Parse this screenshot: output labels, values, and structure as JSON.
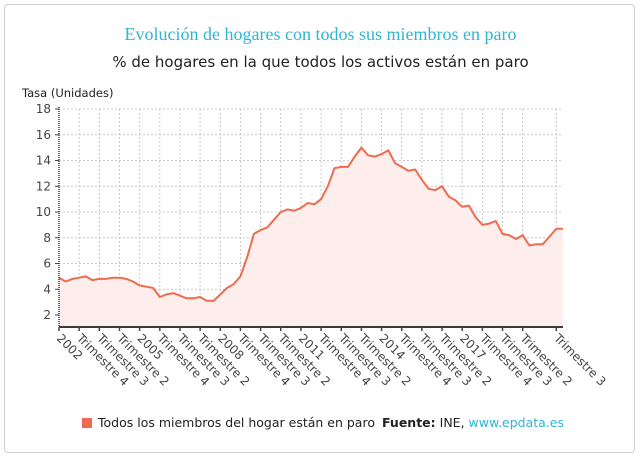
{
  "header": {
    "title": "Evolución de hogares con todos sus miembros en paro",
    "subtitle": "% de hogares en la que todos los activos están en paro"
  },
  "footer": {
    "source_label": "Fuente:",
    "source_text": "INE,",
    "source_link": "www.epdata.es"
  },
  "colors": {
    "title": "#2fb5d3",
    "series": "#ee6b4f",
    "area": "#fdeeec",
    "link": "#2fb5d3"
  },
  "chart_data": {
    "type": "area",
    "title": "Evolución de hogares con todos sus miembros en paro",
    "subtitle": "% de hogares en la que todos los activos están en paro",
    "xlabel": "",
    "ylabel": "Tasa (Unidades)",
    "ylim": [
      1.1,
      18
    ],
    "yticks": [
      2,
      4,
      6,
      8,
      10,
      12,
      14,
      16,
      18
    ],
    "grid": true,
    "legend_position": "bottom-left",
    "x_tick_labels": [
      "2002",
      "Trimestre 4",
      "Trimestre 3",
      "Trimestre 2",
      "2005",
      "Trimestre 4",
      "Trimestre 3",
      "Trimestre 2",
      "2008",
      "Trimestre 4",
      "Trimestre 3",
      "Trimestre 2",
      "2011",
      "Trimestre 4",
      "Trimestre 3",
      "Trimestre 2",
      "2014",
      "Trimestre 4",
      "Trimestre 3",
      "Trimestre 2",
      "2017",
      "Trimestre 4",
      "Trimestre 3",
      "Trimestre 2",
      "Trimestre 3"
    ],
    "x_tick_indices": [
      0,
      3,
      6,
      9,
      12,
      15,
      18,
      21,
      24,
      27,
      30,
      33,
      36,
      39,
      42,
      45,
      48,
      51,
      54,
      57,
      60,
      63,
      66,
      69,
      74
    ],
    "series": [
      {
        "name": "Todos los miembros del hogar están en paro",
        "color": "#ee6b4f",
        "values": [
          4.9,
          4.6,
          4.8,
          4.9,
          5.0,
          4.7,
          4.8,
          4.8,
          4.9,
          4.9,
          4.8,
          4.6,
          4.3,
          4.2,
          4.1,
          3.4,
          3.6,
          3.7,
          3.5,
          3.3,
          3.3,
          3.4,
          3.1,
          3.1,
          3.6,
          4.1,
          4.4,
          5.0,
          6.5,
          8.3,
          8.6,
          8.8,
          9.4,
          10.0,
          10.2,
          10.1,
          10.3,
          10.7,
          10.6,
          11.0,
          12.0,
          13.4,
          13.5,
          13.5,
          14.3,
          15.0,
          14.4,
          14.3,
          14.5,
          14.8,
          13.8,
          13.5,
          13.2,
          13.3,
          12.5,
          11.8,
          11.7,
          12.0,
          11.2,
          10.9,
          10.4,
          10.5,
          9.6,
          9.0,
          9.1,
          9.3,
          8.3,
          8.2,
          7.9,
          8.2,
          7.4,
          7.5,
          7.5,
          8.1,
          8.7,
          8.7
        ]
      }
    ]
  }
}
